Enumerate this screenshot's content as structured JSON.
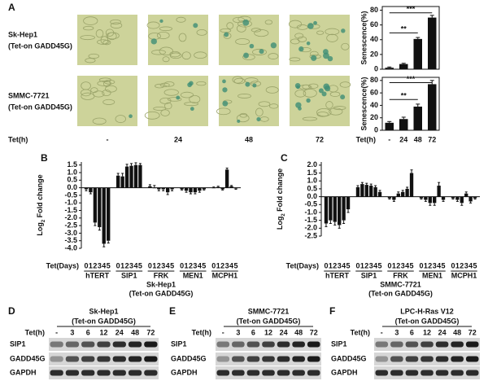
{
  "panel_a": {
    "label": "A",
    "rows": [
      [
        "Sk-Hep1",
        "(Tet-on GADD45G)"
      ],
      [
        "SMMC-7721",
        "(Tet-on GADD45G)"
      ]
    ],
    "xlabel": "Tet(h)",
    "columns": [
      "-",
      "24",
      "48",
      "72"
    ]
  },
  "chart_data": [
    {
      "type": "bar",
      "ylabel": "Senescence(%)",
      "categories": [
        null,
        null,
        null,
        null
      ],
      "values": [
        2,
        7,
        41,
        70
      ],
      "errors": [
        1,
        1,
        2,
        3
      ],
      "color": "#111111",
      "ylim": [
        0,
        85
      ],
      "yticks": [
        0,
        20,
        40,
        60,
        80
      ],
      "annotations": [
        "**",
        "***"
      ]
    },
    {
      "type": "bar",
      "ylabel": "Senescence(%)",
      "xlabel": "Tet(h)",
      "categories": [
        "-",
        "24",
        "48",
        "72"
      ],
      "values": [
        12,
        18,
        38,
        74
      ],
      "errors": [
        2,
        3,
        4,
        6
      ],
      "color": "#111111",
      "ylim": [
        0,
        85
      ],
      "yticks": [
        0,
        20,
        40,
        60,
        80
      ],
      "annotations": [
        "**",
        "***"
      ]
    },
    {
      "type": "grouped_bar",
      "label": "B",
      "ylabel": [
        "Log",
        "2",
        " Fold change"
      ],
      "xlabel": "Tet(Days)",
      "caption": [
        "Sk-Hep1",
        "(Tet-on GADD45G)"
      ],
      "categories": [
        "hTERT",
        "SIP1",
        "FRK",
        "MEN1",
        "MCPH1"
      ],
      "color": "#111111",
      "series": [
        {
          "name": "0",
          "values": [
            -0.1,
            0.8,
            0.1,
            -0.1,
            0.0
          ],
          "errors": [
            0.1,
            0.15,
            0.1,
            0.05,
            0.05
          ]
        },
        {
          "name": "1",
          "values": [
            -0.3,
            0.75,
            0.0,
            -0.2,
            0.05
          ],
          "errors": [
            0.1,
            0.2,
            0.15,
            0.1,
            0.05
          ]
        },
        {
          "name": "2",
          "values": [
            -2.3,
            1.4,
            -0.1,
            -0.3,
            -0.1
          ],
          "errors": [
            0.2,
            0.15,
            0.1,
            0.1,
            0.05
          ]
        },
        {
          "name": "3",
          "values": [
            -2.6,
            1.45,
            -0.1,
            -0.3,
            1.2
          ],
          "errors": [
            0.2,
            0.15,
            0.1,
            0.1,
            0.1
          ]
        },
        {
          "name": "4",
          "values": [
            -3.7,
            1.5,
            -0.3,
            -0.2,
            0.1
          ],
          "errors": [
            0.2,
            0.15,
            0.15,
            0.1,
            0.05
          ]
        },
        {
          "name": "5",
          "values": [
            -3.5,
            1.5,
            -0.1,
            -0.1,
            -0.05
          ],
          "errors": [
            0.15,
            0.1,
            0.1,
            0.05,
            0.05
          ]
        }
      ],
      "ylim": [
        -4.0,
        1.7
      ],
      "yticks": [
        1.5,
        {
          "value": 1,
          "label": "1.0"
        },
        0.5,
        {
          "value": 0,
          "label": "0.0"
        },
        -0.5,
        {
          "value": -1,
          "label": "-1.0"
        },
        -1.5,
        {
          "value": -2,
          "label": "-2.0"
        },
        -2.5,
        {
          "value": -3,
          "label": "-3.0"
        },
        -3.5,
        {
          "value": -4,
          "label": "-4.0"
        }
      ]
    },
    {
      "type": "grouped_bar",
      "label": "C",
      "ylabel": [
        "Log",
        "2",
        " Fold change"
      ],
      "xlabel": "Tet(Days)",
      "caption": [
        "SMMC-7721",
        "(Tet-on GADD45G)"
      ],
      "categories": [
        "hTERT",
        "SIP1",
        "FRK",
        "MEN1",
        "MCPH1"
      ],
      "color": "#111111",
      "series": [
        {
          "name": "0",
          "values": [
            -1.7,
            0.6,
            -0.1,
            -0.1,
            -0.1
          ],
          "errors": [
            0.2,
            0.1,
            0.05,
            0.05,
            0.05
          ]
        },
        {
          "name": "1",
          "values": [
            -1.5,
            0.8,
            -0.2,
            -0.2,
            -0.2
          ],
          "errors": [
            0.2,
            0.1,
            0.1,
            0.1,
            0.1
          ]
        },
        {
          "name": "2",
          "values": [
            -1.6,
            0.75,
            0.2,
            -0.4,
            -0.4
          ],
          "errors": [
            0.2,
            0.1,
            0.1,
            0.15,
            0.15
          ]
        },
        {
          "name": "3",
          "values": [
            -1.8,
            0.7,
            0.3,
            -0.4,
            0.2
          ],
          "errors": [
            0.2,
            0.1,
            0.1,
            0.15,
            0.1
          ]
        },
        {
          "name": "4",
          "values": [
            -1.5,
            0.6,
            0.5,
            0.7,
            -0.3
          ],
          "errors": [
            0.2,
            0.1,
            0.1,
            0.2,
            0.1
          ]
        },
        {
          "name": "5",
          "values": [
            -0.8,
            0.3,
            1.5,
            -0.2,
            -0.1
          ],
          "errors": [
            0.2,
            0.1,
            0.2,
            0.1,
            0.05
          ]
        }
      ],
      "ylim": [
        -2.5,
        2.2
      ],
      "yticks": [
        {
          "value": 2,
          "label": "2.0"
        },
        1.5,
        {
          "value": 1,
          "label": "1.0"
        },
        0.5,
        {
          "value": 0,
          "label": "0.0"
        },
        -0.5,
        {
          "value": -1,
          "label": "-1.0"
        },
        -1.5,
        {
          "value": -2,
          "label": "-2.0"
        },
        -2.5
      ]
    }
  ],
  "blots": [
    {
      "label": "D",
      "title": [
        "Sk-Hep1",
        "(Tet-on GADD45G)"
      ],
      "xlabel": "Tet(h)",
      "lanes": [
        "-",
        "3",
        "6",
        "12",
        "24",
        "48",
        "72"
      ],
      "rows": [
        "SIP1",
        "GADD45G",
        "GAPDH"
      ]
    },
    {
      "label": "E",
      "title": [
        "SMMC-7721",
        "(Tet-on GADD45G)"
      ],
      "xlabel": "Tet(h)",
      "lanes": [
        "-",
        "3",
        "6",
        "12",
        "24",
        "48",
        "72"
      ],
      "rows": [
        "SIP1",
        "GADD45G",
        "GAPDH"
      ]
    },
    {
      "label": "F",
      "title": [
        "LPC-H-Ras V12",
        "(Tet-on GADD45G)"
      ],
      "xlabel": "Tet(h)",
      "lanes": [
        "-",
        "3",
        "6",
        "12",
        "24",
        "48",
        "72"
      ],
      "rows": [
        "SIP1",
        "GADD45G",
        "GAPDH"
      ]
    }
  ]
}
